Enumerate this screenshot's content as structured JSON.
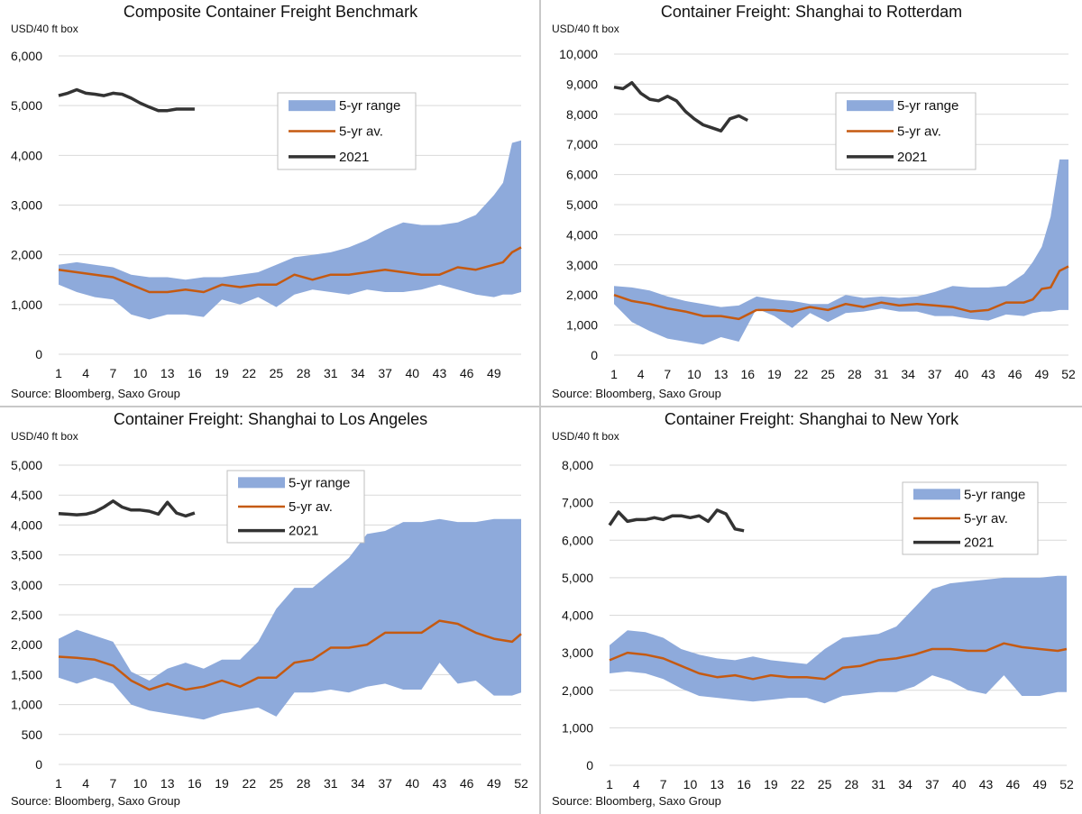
{
  "colors": {
    "range": "#8eaadb",
    "avg": "#c55a11",
    "current": "#333333",
    "gridline": "#d9d9d9"
  },
  "chart_data": [
    {
      "type": "area",
      "title": "Composite Container Freight Benchmark",
      "ylabel": "USD/40 ft box",
      "source": "Source: Bloomberg, Saxo Group",
      "ylim": [
        0,
        6000
      ],
      "yticks": [
        "0",
        "1,000",
        "2,000",
        "3,000",
        "4,000",
        "5,000",
        "6,000"
      ],
      "xticks": [
        1,
        4,
        7,
        10,
        13,
        16,
        19,
        22,
        25,
        28,
        31,
        34,
        37,
        40,
        43,
        46,
        49
      ],
      "x_range": [
        1,
        52
      ],
      "legend": [
        "5-yr range",
        "5-yr av.",
        "2021"
      ],
      "legend_position": "top-right",
      "series": [
        {
          "name": "5-yr range",
          "kind": "band",
          "x": [
            1,
            3,
            5,
            7,
            9,
            11,
            13,
            15,
            17,
            19,
            21,
            23,
            25,
            27,
            29,
            31,
            33,
            35,
            37,
            39,
            41,
            43,
            45,
            47,
            49,
            50,
            51,
            52
          ],
          "high": [
            1800,
            1850,
            1800,
            1750,
            1600,
            1550,
            1550,
            1500,
            1550,
            1550,
            1600,
            1650,
            1800,
            1950,
            2000,
            2050,
            2150,
            2300,
            2500,
            2650,
            2600,
            2600,
            2650,
            2800,
            3200,
            3450,
            4250,
            4300
          ],
          "low": [
            1400,
            1250,
            1150,
            1100,
            800,
            700,
            800,
            800,
            750,
            1100,
            1000,
            1150,
            950,
            1200,
            1300,
            1250,
            1200,
            1300,
            1250,
            1250,
            1300,
            1400,
            1300,
            1200,
            1150,
            1200,
            1200,
            1250
          ]
        },
        {
          "name": "5-yr av.",
          "kind": "line",
          "x": [
            1,
            3,
            5,
            7,
            9,
            11,
            13,
            15,
            17,
            19,
            21,
            23,
            25,
            27,
            29,
            31,
            33,
            35,
            37,
            39,
            41,
            43,
            45,
            47,
            49,
            50,
            51,
            52
          ],
          "values": [
            1700,
            1650,
            1600,
            1550,
            1400,
            1250,
            1250,
            1300,
            1250,
            1400,
            1350,
            1400,
            1400,
            1600,
            1500,
            1600,
            1600,
            1650,
            1700,
            1650,
            1600,
            1600,
            1750,
            1700,
            1800,
            1850,
            2050,
            2150
          ]
        },
        {
          "name": "2021",
          "kind": "line",
          "x": [
            1,
            2,
            3,
            4,
            5,
            6,
            7,
            8,
            9,
            10,
            11,
            12,
            13,
            14,
            15,
            16
          ],
          "values": [
            5200,
            5250,
            5320,
            5250,
            5230,
            5200,
            5250,
            5230,
            5150,
            5050,
            4970,
            4900,
            4900,
            4930,
            4930,
            4930
          ]
        }
      ]
    },
    {
      "type": "area",
      "title": "Container Freight: Shanghai to Rotterdam",
      "ylabel": "USD/40 ft box",
      "source": "Source: Bloomberg, Saxo Group",
      "ylim": [
        0,
        10000
      ],
      "yticks": [
        "0",
        "1,000",
        "2,000",
        "3,000",
        "4,000",
        "5,000",
        "6,000",
        "7,000",
        "8,000",
        "9,000",
        "10,000"
      ],
      "xticks": [
        1,
        4,
        7,
        10,
        13,
        16,
        19,
        22,
        25,
        28,
        31,
        34,
        37,
        40,
        43,
        46,
        49,
        52
      ],
      "x_range": [
        1,
        52
      ],
      "legend": [
        "5-yr range",
        "5-yr av.",
        "2021"
      ],
      "legend_position": "top-right",
      "series": [
        {
          "name": "5-yr range",
          "kind": "band",
          "x": [
            1,
            3,
            5,
            7,
            9,
            11,
            13,
            15,
            17,
            19,
            21,
            23,
            25,
            27,
            29,
            31,
            33,
            35,
            37,
            39,
            41,
            43,
            45,
            47,
            48,
            49,
            50,
            51,
            52
          ],
          "high": [
            2300,
            2250,
            2150,
            1950,
            1800,
            1700,
            1600,
            1650,
            1950,
            1850,
            1800,
            1700,
            1700,
            2000,
            1900,
            1950,
            1900,
            1950,
            2100,
            2300,
            2250,
            2250,
            2300,
            2700,
            3100,
            3600,
            4600,
            6500,
            6500
          ],
          "low": [
            1700,
            1100,
            800,
            550,
            450,
            350,
            600,
            450,
            1550,
            1300,
            900,
            1400,
            1100,
            1400,
            1450,
            1550,
            1450,
            1450,
            1300,
            1300,
            1200,
            1150,
            1350,
            1300,
            1400,
            1450,
            1450,
            1500,
            1500
          ]
        },
        {
          "name": "5-yr av.",
          "kind": "line",
          "x": [
            1,
            3,
            5,
            7,
            9,
            11,
            13,
            15,
            17,
            19,
            21,
            23,
            25,
            27,
            29,
            31,
            33,
            35,
            37,
            39,
            41,
            43,
            45,
            47,
            48,
            49,
            50,
            51,
            52
          ],
          "values": [
            2000,
            1800,
            1700,
            1550,
            1450,
            1300,
            1300,
            1200,
            1500,
            1500,
            1450,
            1600,
            1500,
            1700,
            1600,
            1750,
            1650,
            1700,
            1650,
            1600,
            1450,
            1500,
            1750,
            1750,
            1850,
            2200,
            2250,
            2800,
            2950
          ]
        },
        {
          "name": "2021",
          "kind": "line",
          "x": [
            1,
            2,
            3,
            4,
            5,
            6,
            7,
            8,
            9,
            10,
            11,
            12,
            13,
            14,
            15,
            16
          ],
          "values": [
            8900,
            8850,
            9050,
            8700,
            8500,
            8450,
            8600,
            8450,
            8100,
            7850,
            7650,
            7550,
            7450,
            7850,
            7950,
            7800
          ]
        }
      ]
    },
    {
      "type": "area",
      "title": "Container Freight: Shanghai to Los Angeles",
      "ylabel": "USD/40 ft box",
      "source": "Source: Bloomberg, Saxo Group",
      "ylim": [
        0,
        5000
      ],
      "yticks": [
        "0",
        "500",
        "1,000",
        "1,500",
        "2,000",
        "2,500",
        "3,000",
        "3,500",
        "4,000",
        "4,500",
        "5,000"
      ],
      "xticks": [
        1,
        4,
        7,
        10,
        13,
        16,
        19,
        22,
        25,
        28,
        31,
        34,
        37,
        40,
        43,
        46,
        49,
        52
      ],
      "x_range": [
        1,
        52
      ],
      "legend": [
        "5-yr range",
        "5-yr av.",
        "2021"
      ],
      "legend_position": "top-center",
      "series": [
        {
          "name": "5-yr range",
          "kind": "band",
          "x": [
            1,
            3,
            5,
            7,
            9,
            11,
            13,
            15,
            17,
            19,
            21,
            23,
            25,
            27,
            29,
            31,
            33,
            35,
            37,
            39,
            41,
            43,
            45,
            47,
            49,
            51,
            52
          ],
          "high": [
            2100,
            2250,
            2150,
            2050,
            1550,
            1400,
            1600,
            1700,
            1600,
            1750,
            1750,
            2050,
            2600,
            2950,
            2950,
            3200,
            3450,
            3850,
            3900,
            4050,
            4050,
            4100,
            4050,
            4050,
            4100,
            4100,
            4100
          ],
          "low": [
            1450,
            1350,
            1450,
            1350,
            1000,
            900,
            850,
            800,
            750,
            850,
            900,
            950,
            800,
            1200,
            1200,
            1250,
            1200,
            1300,
            1350,
            1250,
            1250,
            1700,
            1350,
            1400,
            1150,
            1150,
            1200
          ]
        },
        {
          "name": "5-yr av.",
          "kind": "line",
          "x": [
            1,
            3,
            5,
            7,
            9,
            11,
            13,
            15,
            17,
            19,
            21,
            23,
            25,
            27,
            29,
            31,
            33,
            35,
            37,
            39,
            41,
            43,
            45,
            47,
            49,
            51,
            52
          ],
          "values": [
            1800,
            1780,
            1750,
            1650,
            1400,
            1250,
            1350,
            1250,
            1300,
            1400,
            1300,
            1450,
            1450,
            1700,
            1750,
            1950,
            1950,
            2000,
            2200,
            2200,
            2200,
            2400,
            2350,
            2200,
            2100,
            2050,
            2180
          ]
        },
        {
          "name": "2021",
          "kind": "line",
          "x": [
            1,
            2,
            3,
            4,
            5,
            6,
            7,
            8,
            9,
            10,
            11,
            12,
            13,
            14,
            15,
            16
          ],
          "values": [
            4190,
            4180,
            4170,
            4180,
            4220,
            4300,
            4400,
            4300,
            4250,
            4250,
            4230,
            4180,
            4380,
            4200,
            4150,
            4200
          ]
        }
      ]
    },
    {
      "type": "area",
      "title": "Container Freight: Shanghai to New York",
      "ylabel": "USD/40 ft box",
      "source": "Source: Bloomberg, Saxo Group",
      "ylim": [
        0,
        8000
      ],
      "yticks": [
        "0",
        "1,000",
        "2,000",
        "3,000",
        "4,000",
        "5,000",
        "6,000",
        "7,000",
        "8,000"
      ],
      "xticks": [
        1,
        4,
        7,
        10,
        13,
        16,
        19,
        22,
        25,
        28,
        31,
        34,
        37,
        40,
        43,
        46,
        49,
        52
      ],
      "x_range": [
        1,
        52
      ],
      "legend": [
        "5-yr range",
        "5-yr av.",
        "2021"
      ],
      "legend_position": "top-right",
      "series": [
        {
          "name": "5-yr range",
          "kind": "band",
          "x": [
            1,
            3,
            5,
            7,
            9,
            11,
            13,
            15,
            17,
            19,
            21,
            23,
            25,
            27,
            29,
            31,
            33,
            35,
            37,
            39,
            41,
            43,
            45,
            47,
            49,
            51,
            52
          ],
          "high": [
            3200,
            3600,
            3550,
            3400,
            3100,
            2950,
            2850,
            2800,
            2900,
            2800,
            2750,
            2700,
            3100,
            3400,
            3450,
            3500,
            3700,
            4200,
            4700,
            4850,
            4900,
            4950,
            5000,
            5000,
            5000,
            5050,
            5050
          ],
          "low": [
            2450,
            2500,
            2450,
            2300,
            2050,
            1850,
            1800,
            1750,
            1700,
            1750,
            1800,
            1800,
            1650,
            1850,
            1900,
            1950,
            1950,
            2100,
            2400,
            2250,
            2000,
            1900,
            2400,
            1850,
            1850,
            1950,
            1950
          ]
        },
        {
          "name": "5-yr av.",
          "kind": "line",
          "x": [
            1,
            3,
            5,
            7,
            9,
            11,
            13,
            15,
            17,
            19,
            21,
            23,
            25,
            27,
            29,
            31,
            33,
            35,
            37,
            39,
            41,
            43,
            45,
            47,
            49,
            51,
            52
          ],
          "values": [
            2800,
            3000,
            2950,
            2850,
            2650,
            2450,
            2350,
            2400,
            2300,
            2400,
            2350,
            2350,
            2300,
            2600,
            2650,
            2800,
            2850,
            2950,
            3100,
            3100,
            3050,
            3050,
            3250,
            3150,
            3100,
            3050,
            3100
          ]
        },
        {
          "name": "2021",
          "kind": "line",
          "x": [
            1,
            2,
            3,
            4,
            5,
            6,
            7,
            8,
            9,
            10,
            11,
            12,
            13,
            14,
            15,
            16
          ],
          "values": [
            6400,
            6750,
            6500,
            6550,
            6550,
            6600,
            6550,
            6650,
            6650,
            6600,
            6650,
            6500,
            6800,
            6700,
            6300,
            6250
          ]
        }
      ]
    }
  ]
}
